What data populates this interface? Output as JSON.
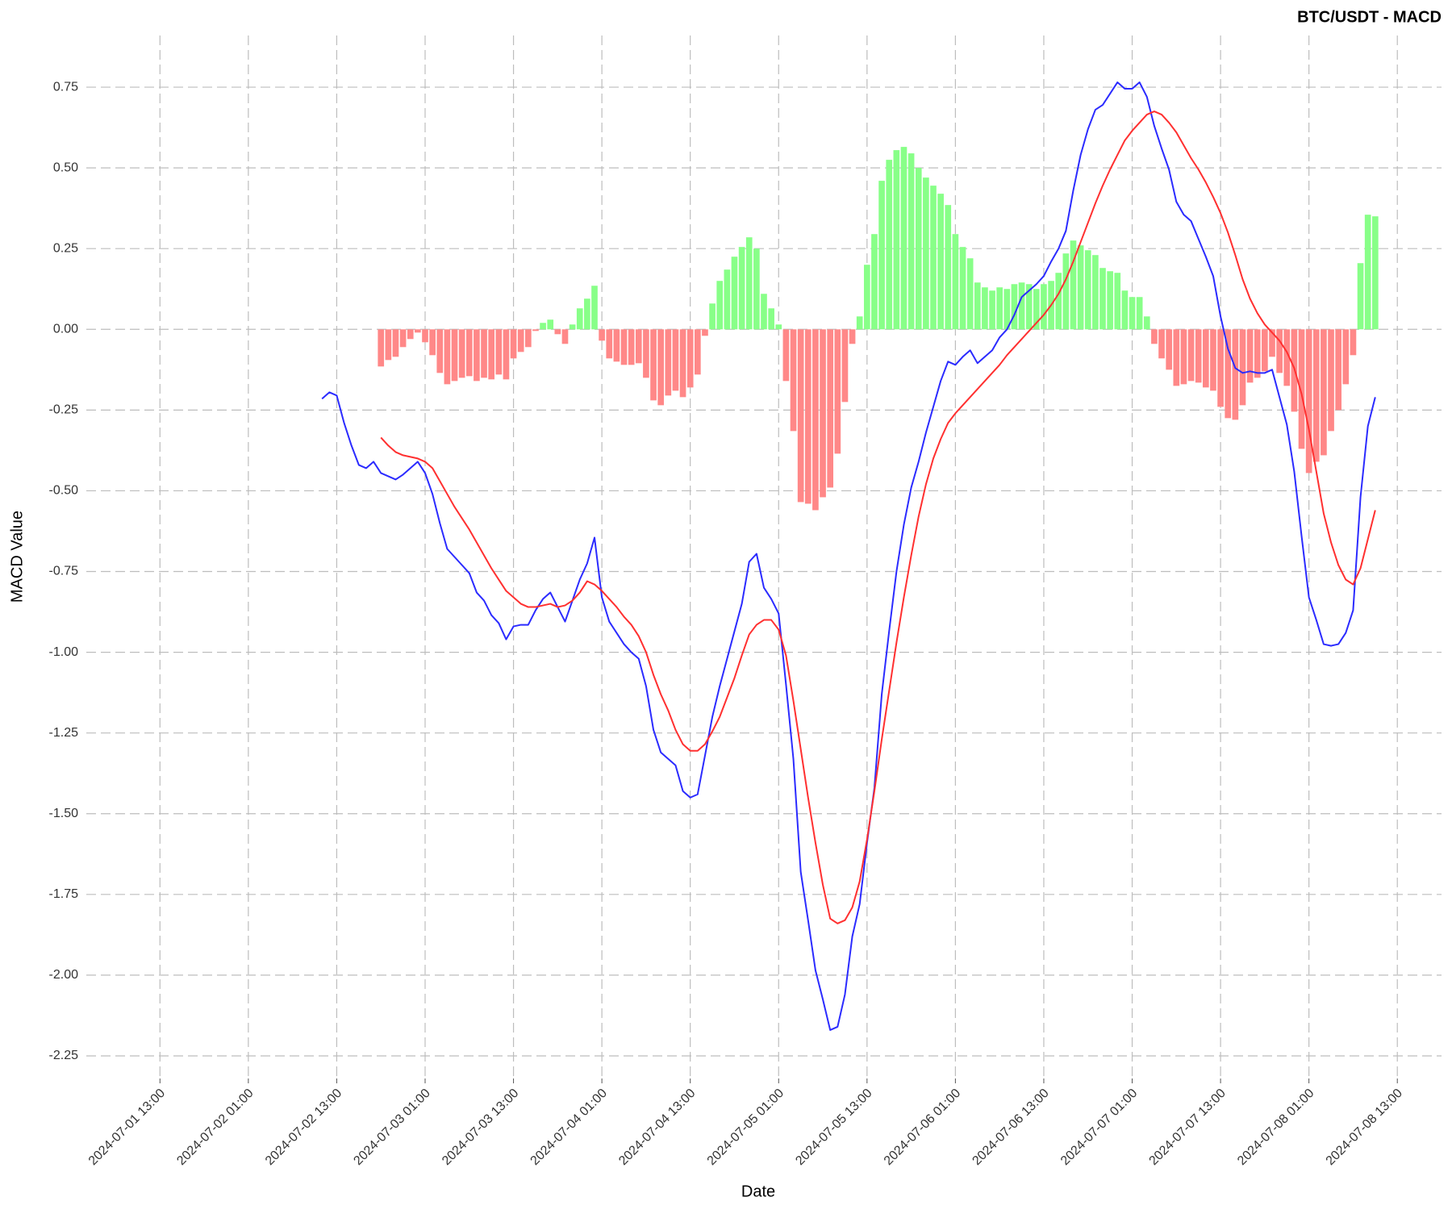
{
  "chart_data": {
    "type": "macd",
    "title": "BTC/USDT - MACD",
    "x_label": "Date",
    "y_label": "MACD Value",
    "grid": true,
    "x": [
      "2024-07-02 11:00",
      "2024-07-02 12:00",
      "2024-07-02 13:00",
      "2024-07-02 14:00",
      "2024-07-02 15:00",
      "2024-07-02 16:00",
      "2024-07-02 17:00",
      "2024-07-02 18:00",
      "2024-07-02 19:00",
      "2024-07-02 20:00",
      "2024-07-02 21:00",
      "2024-07-02 22:00",
      "2024-07-02 23:00",
      "2024-07-03 00:00",
      "2024-07-03 01:00",
      "2024-07-03 02:00",
      "2024-07-03 03:00",
      "2024-07-03 04:00",
      "2024-07-03 05:00",
      "2024-07-03 06:00",
      "2024-07-03 07:00",
      "2024-07-03 08:00",
      "2024-07-03 09:00",
      "2024-07-03 10:00",
      "2024-07-03 11:00",
      "2024-07-03 12:00",
      "2024-07-03 13:00",
      "2024-07-03 14:00",
      "2024-07-03 15:00",
      "2024-07-03 16:00",
      "2024-07-03 17:00",
      "2024-07-03 18:00",
      "2024-07-03 19:00",
      "2024-07-03 20:00",
      "2024-07-03 21:00",
      "2024-07-03 22:00",
      "2024-07-03 23:00",
      "2024-07-04 00:00",
      "2024-07-04 01:00",
      "2024-07-04 02:00",
      "2024-07-04 03:00",
      "2024-07-04 04:00",
      "2024-07-04 05:00",
      "2024-07-04 06:00",
      "2024-07-04 07:00",
      "2024-07-04 08:00",
      "2024-07-04 09:00",
      "2024-07-04 10:00",
      "2024-07-04 11:00",
      "2024-07-04 12:00",
      "2024-07-04 13:00",
      "2024-07-04 14:00",
      "2024-07-04 15:00",
      "2024-07-04 16:00",
      "2024-07-04 17:00",
      "2024-07-04 18:00",
      "2024-07-04 19:00",
      "2024-07-04 20:00",
      "2024-07-04 21:00",
      "2024-07-04 22:00",
      "2024-07-04 23:00",
      "2024-07-05 00:00",
      "2024-07-05 01:00",
      "2024-07-05 02:00",
      "2024-07-05 03:00",
      "2024-07-05 04:00",
      "2024-07-05 05:00",
      "2024-07-05 06:00",
      "2024-07-05 07:00",
      "2024-07-05 08:00",
      "2024-07-05 09:00",
      "2024-07-05 10:00",
      "2024-07-05 11:00",
      "2024-07-05 12:00",
      "2024-07-05 13:00",
      "2024-07-05 14:00",
      "2024-07-05 15:00",
      "2024-07-05 16:00",
      "2024-07-05 17:00",
      "2024-07-05 18:00",
      "2024-07-05 19:00",
      "2024-07-05 20:00",
      "2024-07-05 21:00",
      "2024-07-05 22:00",
      "2024-07-05 23:00",
      "2024-07-06 00:00",
      "2024-07-06 01:00",
      "2024-07-06 02:00",
      "2024-07-06 03:00",
      "2024-07-06 04:00",
      "2024-07-06 05:00",
      "2024-07-06 06:00",
      "2024-07-06 07:00",
      "2024-07-06 08:00",
      "2024-07-06 09:00",
      "2024-07-06 10:00",
      "2024-07-06 11:00",
      "2024-07-06 12:00",
      "2024-07-06 13:00",
      "2024-07-06 14:00",
      "2024-07-06 15:00",
      "2024-07-06 16:00",
      "2024-07-06 17:00",
      "2024-07-06 18:00",
      "2024-07-06 19:00",
      "2024-07-06 20:00",
      "2024-07-06 21:00",
      "2024-07-06 22:00",
      "2024-07-06 23:00",
      "2024-07-07 00:00",
      "2024-07-07 01:00",
      "2024-07-07 02:00",
      "2024-07-07 03:00",
      "2024-07-07 04:00",
      "2024-07-07 05:00",
      "2024-07-07 06:00",
      "2024-07-07 07:00",
      "2024-07-07 08:00",
      "2024-07-07 09:00",
      "2024-07-07 10:00",
      "2024-07-07 11:00",
      "2024-07-07 12:00",
      "2024-07-07 13:00",
      "2024-07-07 14:00",
      "2024-07-07 15:00",
      "2024-07-07 16:00",
      "2024-07-07 17:00",
      "2024-07-07 18:00",
      "2024-07-07 19:00",
      "2024-07-07 20:00",
      "2024-07-07 21:00",
      "2024-07-07 22:00",
      "2024-07-07 23:00",
      "2024-07-08 00:00",
      "2024-07-08 01:00",
      "2024-07-08 02:00",
      "2024-07-08 03:00",
      "2024-07-08 04:00",
      "2024-07-08 05:00",
      "2024-07-08 06:00",
      "2024-07-08 07:00",
      "2024-07-08 08:00",
      "2024-07-08 09:00",
      "2024-07-08 10:00"
    ],
    "series": [
      {
        "type": "bar",
        "color": "#88ff88",
        "negative_color": "#ff8888",
        "values": [
          null,
          null,
          null,
          null,
          null,
          null,
          null,
          null,
          -0.115,
          -0.095,
          -0.085,
          -0.055,
          -0.03,
          -0.01,
          -0.04,
          -0.08,
          -0.135,
          -0.17,
          -0.16,
          -0.15,
          -0.145,
          -0.16,
          -0.15,
          -0.155,
          -0.14,
          -0.155,
          -0.09,
          -0.07,
          -0.055,
          -0.005,
          0.02,
          0.03,
          -0.015,
          -0.045,
          0.015,
          0.065,
          0.095,
          0.135,
          -0.035,
          -0.09,
          -0.1,
          -0.11,
          -0.11,
          -0.105,
          -0.15,
          -0.22,
          -0.235,
          -0.205,
          -0.19,
          -0.21,
          -0.18,
          -0.14,
          -0.02,
          0.08,
          0.15,
          0.185,
          0.225,
          0.255,
          0.285,
          0.25,
          0.11,
          0.065,
          0.015,
          -0.16,
          -0.315,
          -0.535,
          -0.54,
          -0.56,
          -0.52,
          -0.49,
          -0.385,
          -0.225,
          -0.045,
          0.04,
          0.2,
          0.295,
          0.46,
          0.525,
          0.555,
          0.565,
          0.545,
          0.5,
          0.47,
          0.445,
          0.42,
          0.385,
          0.295,
          0.255,
          0.22,
          0.145,
          0.13,
          0.12,
          0.13,
          0.125,
          0.14,
          0.145,
          0.14,
          0.125,
          0.14,
          0.15,
          0.175,
          0.235,
          0.275,
          0.26,
          0.245,
          0.23,
          0.19,
          0.18,
          0.175,
          0.12,
          0.1,
          0.1,
          0.04,
          -0.045,
          -0.09,
          -0.125,
          -0.175,
          -0.17,
          -0.16,
          -0.165,
          -0.18,
          -0.19,
          -0.24,
          -0.275,
          -0.28,
          -0.235,
          -0.165,
          -0.15,
          -0.13,
          -0.085,
          -0.135,
          -0.175,
          -0.255,
          -0.37,
          -0.445,
          -0.41,
          -0.39,
          -0.315,
          -0.25,
          -0.17,
          -0.08,
          0.205,
          0.355,
          0.35
        ]
      },
      {
        "type": "line",
        "color": "#2b2bff",
        "values": [
          -0.215,
          -0.195,
          -0.205,
          -0.29,
          -0.36,
          -0.42,
          -0.43,
          -0.41,
          -0.445,
          -0.455,
          -0.465,
          -0.45,
          -0.43,
          -0.41,
          -0.445,
          -0.51,
          -0.6,
          -0.68,
          -0.705,
          -0.73,
          -0.755,
          -0.815,
          -0.84,
          -0.885,
          -0.91,
          -0.96,
          -0.92,
          -0.915,
          -0.915,
          -0.87,
          -0.835,
          -0.815,
          -0.86,
          -0.905,
          -0.84,
          -0.775,
          -0.725,
          -0.645,
          -0.83,
          -0.905,
          -0.94,
          -0.975,
          -1.0,
          -1.02,
          -1.105,
          -1.24,
          -1.31,
          -1.33,
          -1.35,
          -1.43,
          -1.45,
          -1.44,
          -1.32,
          -1.2,
          -1.105,
          -1.02,
          -0.935,
          -0.85,
          -0.72,
          -0.695,
          -0.8,
          -0.835,
          -0.88,
          -1.1,
          -1.33,
          -1.68,
          -1.83,
          -1.985,
          -2.075,
          -2.17,
          -2.16,
          -2.06,
          -1.88,
          -1.78,
          -1.59,
          -1.42,
          -1.13,
          -0.935,
          -0.75,
          -0.605,
          -0.49,
          -0.41,
          -0.32,
          -0.24,
          -0.16,
          -0.1,
          -0.11,
          -0.085,
          -0.065,
          -0.105,
          -0.085,
          -0.065,
          -0.025,
          0.0,
          0.045,
          0.1,
          0.12,
          0.14,
          0.165,
          0.21,
          0.25,
          0.305,
          0.43,
          0.54,
          0.62,
          0.68,
          0.695,
          0.73,
          0.765,
          0.745,
          0.745,
          0.765,
          0.72,
          0.63,
          0.56,
          0.495,
          0.395,
          0.355,
          0.335,
          0.28,
          0.225,
          0.165,
          0.04,
          -0.06,
          -0.12,
          -0.135,
          -0.13,
          -0.135,
          -0.135,
          -0.125,
          -0.21,
          -0.295,
          -0.44,
          -0.64,
          -0.83,
          -0.9,
          -0.975,
          -0.98,
          -0.975,
          -0.94,
          -0.87,
          -0.52,
          -0.3,
          -0.21
        ]
      },
      {
        "type": "line",
        "color": "#ff3030",
        "values": [
          null,
          null,
          null,
          null,
          null,
          null,
          null,
          null,
          -0.335,
          -0.36,
          -0.38,
          -0.39,
          -0.395,
          -0.4,
          -0.41,
          -0.43,
          -0.47,
          -0.51,
          -0.55,
          -0.585,
          -0.62,
          -0.66,
          -0.7,
          -0.74,
          -0.775,
          -0.81,
          -0.83,
          -0.85,
          -0.86,
          -0.86,
          -0.855,
          -0.85,
          -0.86,
          -0.855,
          -0.84,
          -0.815,
          -0.78,
          -0.79,
          -0.81,
          -0.835,
          -0.86,
          -0.89,
          -0.915,
          -0.95,
          -1.0,
          -1.07,
          -1.13,
          -1.18,
          -1.24,
          -1.285,
          -1.305,
          -1.305,
          -1.285,
          -1.245,
          -1.2,
          -1.14,
          -1.08,
          -1.01,
          -0.945,
          -0.915,
          -0.9,
          -0.9,
          -0.93,
          -1.01,
          -1.15,
          -1.3,
          -1.45,
          -1.59,
          -1.72,
          -1.825,
          -1.84,
          -1.83,
          -1.79,
          -1.71,
          -1.58,
          -1.43,
          -1.27,
          -1.12,
          -0.97,
          -0.83,
          -0.7,
          -0.58,
          -0.48,
          -0.4,
          -0.34,
          -0.29,
          -0.26,
          -0.235,
          -0.21,
          -0.185,
          -0.16,
          -0.135,
          -0.11,
          -0.08,
          -0.055,
          -0.03,
          -0.005,
          0.02,
          0.045,
          0.075,
          0.11,
          0.155,
          0.21,
          0.27,
          0.33,
          0.39,
          0.445,
          0.495,
          0.54,
          0.585,
          0.615,
          0.64,
          0.665,
          0.675,
          0.665,
          0.64,
          0.61,
          0.57,
          0.53,
          0.495,
          0.455,
          0.41,
          0.36,
          0.3,
          0.23,
          0.155,
          0.095,
          0.05,
          0.015,
          -0.01,
          -0.035,
          -0.07,
          -0.12,
          -0.2,
          -0.31,
          -0.44,
          -0.57,
          -0.66,
          -0.73,
          -0.775,
          -0.79,
          -0.74,
          -0.65,
          -0.56
        ]
      }
    ],
    "xlim": [
      "2024-07-01 03:00",
      "2024-07-08 19:00"
    ],
    "xticks": [
      "2024-07-01 13:00",
      "2024-07-02 01:00",
      "2024-07-02 13:00",
      "2024-07-03 01:00",
      "2024-07-03 13:00",
      "2024-07-04 01:00",
      "2024-07-04 13:00",
      "2024-07-05 01:00",
      "2024-07-05 13:00",
      "2024-07-06 01:00",
      "2024-07-06 13:00",
      "2024-07-07 01:00",
      "2024-07-07 13:00",
      "2024-07-08 01:00",
      "2024-07-08 13:00"
    ],
    "ylim": [
      -2.32,
      0.91
    ],
    "yticks": [
      0.75,
      {
        "value": 0.5,
        "label": "0.50"
      },
      0.25,
      {
        "value": 0,
        "label": "0.00"
      },
      -0.25,
      {
        "value": -0.5,
        "label": "-0.50"
      },
      -0.75,
      {
        "value": -1,
        "label": "-1.00"
      },
      -1.25,
      {
        "value": -1.5,
        "label": "-1.50"
      },
      -1.75,
      {
        "value": -2,
        "label": "-2.00"
      },
      -2.25
    ]
  }
}
